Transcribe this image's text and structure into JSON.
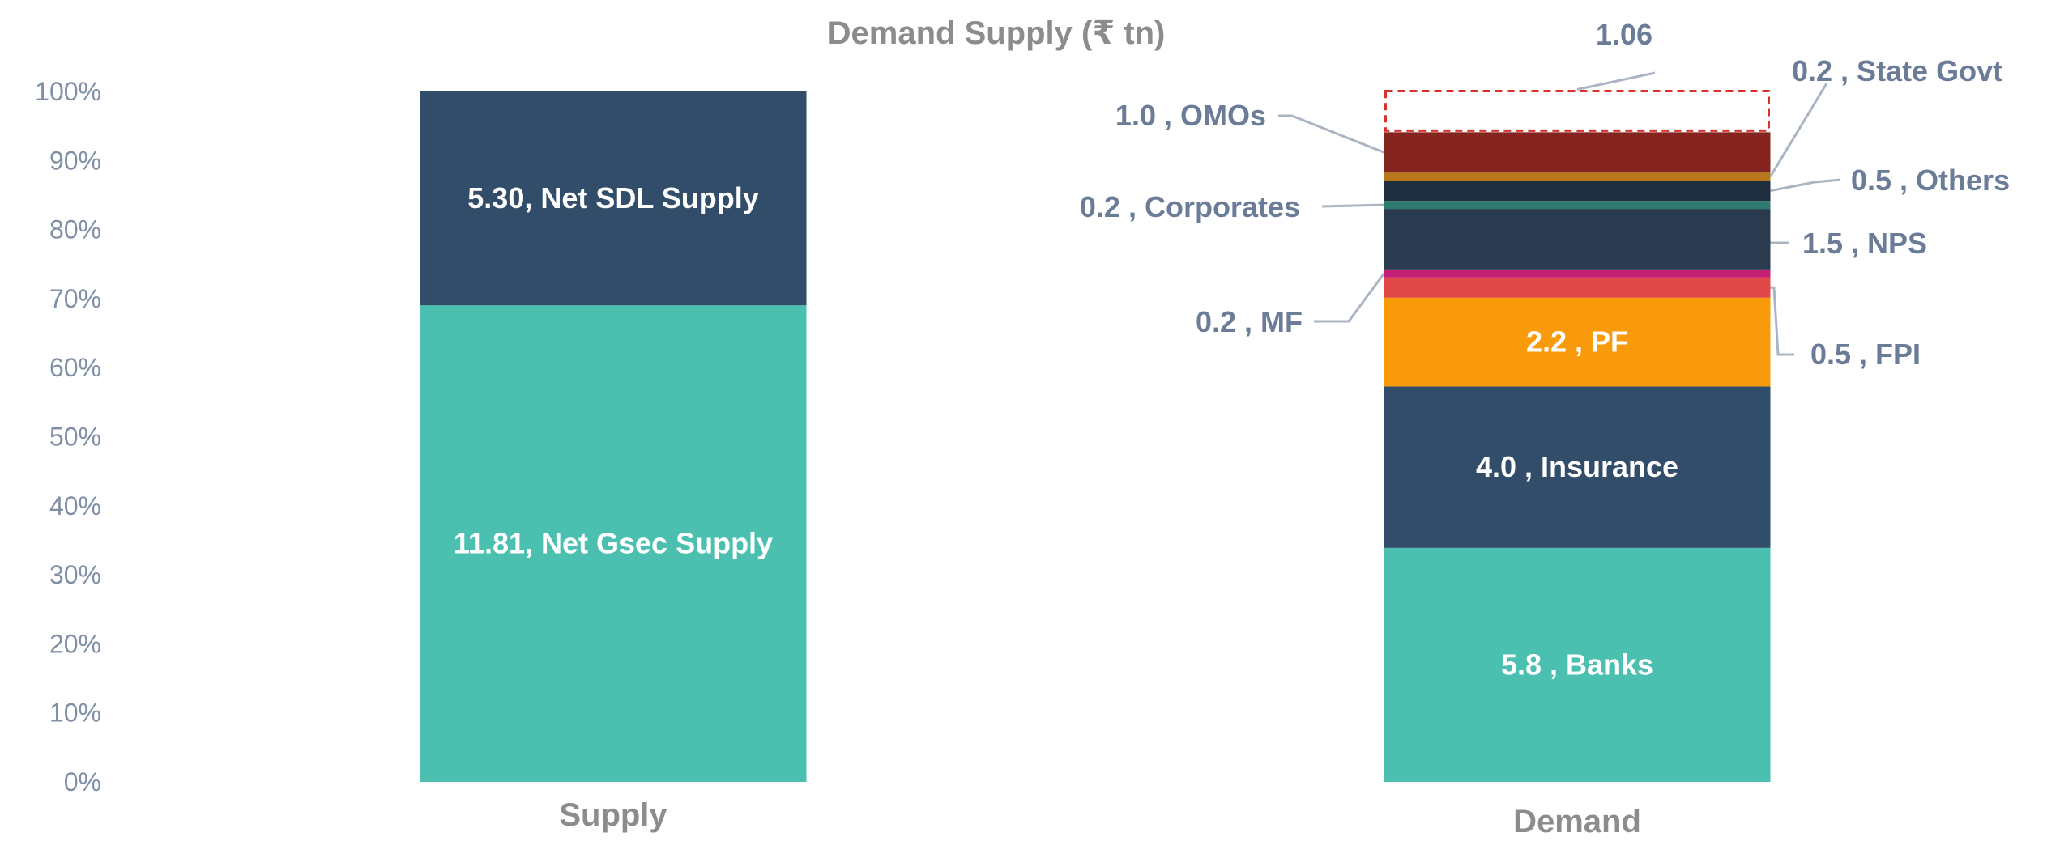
{
  "chart_data": {
    "type": "bar",
    "stacked": "percent",
    "title": "Demand Supply (₹ tn)",
    "categories": [
      "Supply",
      "Demand"
    ],
    "y_ticks": [
      "0%",
      "10%",
      "20%",
      "30%",
      "40%",
      "50%",
      "60%",
      "70%",
      "80%",
      "90%",
      "100%"
    ],
    "ylim": [
      0,
      100
    ],
    "supply_series": [
      {
        "name": "Net Gsec Supply",
        "value": 11.81,
        "label": "11.81, Net Gsec Supply",
        "color": "#4bc0b0",
        "label_style": "inside"
      },
      {
        "name": "Net SDL Supply",
        "value": 5.3,
        "label": "5.30, Net SDL Supply",
        "color": "#324d69",
        "label_style": "inside"
      }
    ],
    "demand_series": [
      {
        "name": "Banks",
        "value": 5.8,
        "label": "5.8 , Banks",
        "color": "#4bc0b0",
        "label_style": "inside"
      },
      {
        "name": "Insurance",
        "value": 4.0,
        "label": "4.0 , Insurance",
        "color": "#324d69",
        "label_style": "inside"
      },
      {
        "name": "PF",
        "value": 2.2,
        "label": "2.2 , PF",
        "color": "#f89a0a",
        "label_style": "inside"
      },
      {
        "name": "FPI",
        "value": 0.5,
        "label": "0.5 , FPI",
        "color": "#e04848",
        "label_style": "right"
      },
      {
        "name": "MF",
        "value": 0.2,
        "label": "0.2 , MF",
        "color": "#c41f75",
        "label_style": "left"
      },
      {
        "name": "NPS",
        "value": 1.5,
        "label": "1.5 , NPS",
        "color": "#2b3b4f",
        "label_style": "right"
      },
      {
        "name": "Corporates",
        "value": 0.2,
        "label": "0.2 , Corporates",
        "color": "#2f7a6e",
        "label_style": "left"
      },
      {
        "name": "Others",
        "value": 0.5,
        "label": "0.5 , Others",
        "color": "#1f2e3e",
        "label_style": "right"
      },
      {
        "name": "State Govt",
        "value": 0.2,
        "label": "0.2 , State Govt",
        "color": "#b8761a",
        "label_style": "right"
      },
      {
        "name": "OMOs",
        "value": 1.0,
        "label": "1.0 , OMOs",
        "color": "#85241f",
        "label_style": "left"
      },
      {
        "name": "Gap",
        "value": 1.06,
        "label": "1.06",
        "color": "none",
        "border": "#d9312b",
        "label_style": "top"
      }
    ]
  }
}
